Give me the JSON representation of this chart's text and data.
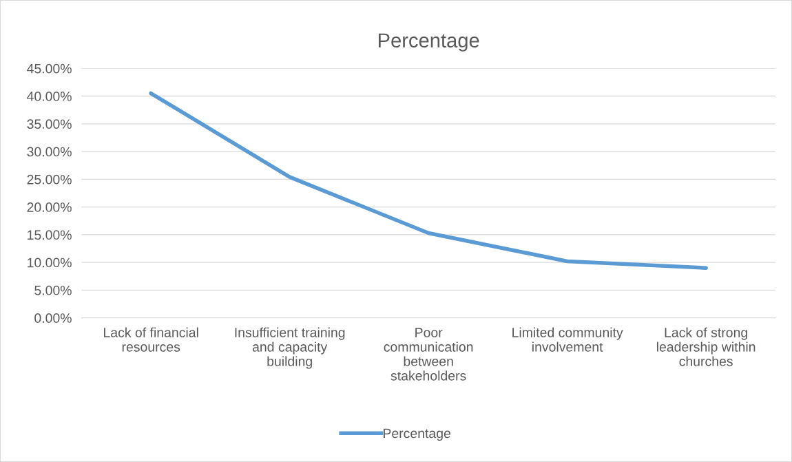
{
  "chart_data": {
    "type": "line",
    "title": "Percentage",
    "categories": [
      "Lack of financial\nresources",
      "Insufficient training\nand capacity\nbuilding",
      "Poor\ncommunication\nbetween\nstakeholders",
      "Limited community\ninvolvement",
      "Lack of strong\nleadership within\nchurches"
    ],
    "series": [
      {
        "name": "Percentage",
        "color": "#5b9bd5",
        "values": [
          40.5,
          25.4,
          15.3,
          10.2,
          9.0
        ]
      }
    ],
    "ylim": [
      0,
      45
    ],
    "yticks": [
      {
        "value": 0,
        "label": "0.00%"
      },
      {
        "value": 5,
        "label": "5.00%"
      },
      {
        "value": 10,
        "label": "10.00%"
      },
      {
        "value": 15,
        "label": "15.00%"
      },
      {
        "value": 20,
        "label": "20.00%"
      },
      {
        "value": 25,
        "label": "25.00%"
      },
      {
        "value": 30,
        "label": "30.00%"
      },
      {
        "value": 35,
        "label": "35.00%"
      },
      {
        "value": 40,
        "label": "40.00%"
      },
      {
        "value": 45,
        "label": "45.00%"
      }
    ],
    "grid": "y",
    "legend": "bottom",
    "marker": "none",
    "line_style": "solid"
  }
}
